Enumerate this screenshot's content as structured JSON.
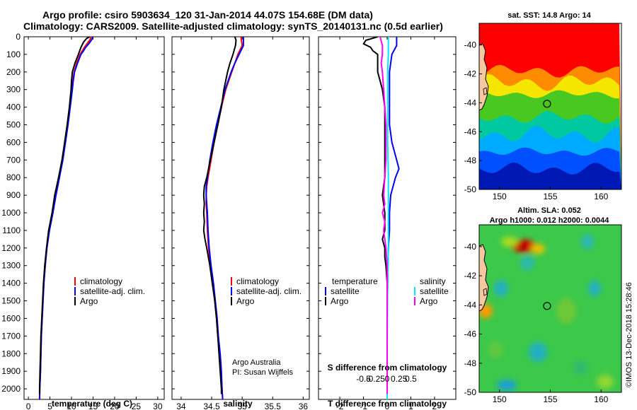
{
  "figure": {
    "title_line1": "Argo profile: csiro 5903634_120 31-Jan-2014 44.07S 154.68E (DM data)",
    "title_line2": "Climatology: CARS2009. Satellite-adjusted climatology: synTS_20140131.nc (0.5d earlier)",
    "credit_line1": "Argo Australia",
    "credit_line2": "PI: Susan Wijffels",
    "imos_stamp": "©IMOS 13-Dec-2018 15:28:46",
    "colors": {
      "climatology": "#ff0000",
      "satellite": "#0000ff",
      "argo": "#000000",
      "s_satellite": "#00e5ff",
      "s_argo": "#ff00ff"
    }
  },
  "chart_data": [
    {
      "type": "line",
      "panel": "temperature",
      "xlabel": "temperature (deg C)",
      "xlim": [
        -1,
        31.5
      ],
      "xticks": [
        0,
        5,
        10,
        15,
        20,
        25,
        30
      ],
      "xtick_labels": [
        "0",
        "5",
        "10",
        "15",
        "20",
        "25",
        "30"
      ],
      "ylim": [
        2060,
        0
      ],
      "yticks": [
        0,
        100,
        200,
        300,
        400,
        500,
        600,
        700,
        800,
        900,
        1000,
        1100,
        1200,
        1300,
        1400,
        1500,
        1600,
        1700,
        1800,
        1900,
        2000
      ],
      "ytick_labels": [
        "0",
        "100",
        "200",
        "300",
        "400",
        "500",
        "600",
        "700",
        "800",
        "900",
        "1000",
        "1100",
        "1200",
        "1300",
        "1400",
        "1500",
        "1600",
        "1700",
        "1800",
        "1900",
        "2000"
      ],
      "legend_labels": [
        "climatology",
        "satellite-adj. clim.",
        "Argo"
      ],
      "series": [
        {
          "name": "climatology",
          "color": "#ff0000",
          "depth": [
            0,
            20,
            40,
            60,
            80,
            100,
            150,
            200,
            250,
            300,
            400,
            500,
            600,
            700,
            800,
            900,
            1000,
            1100,
            1200,
            1300,
            1400,
            1500,
            1600,
            1700,
            1800,
            1900,
            2000,
            2060
          ],
          "values": [
            14.6,
            14.2,
            13.6,
            13.0,
            12.5,
            12.0,
            11.2,
            10.6,
            10.3,
            10.1,
            9.6,
            9.1,
            8.5,
            7.9,
            7.1,
            6.3,
            5.6,
            4.8,
            4.3,
            3.9,
            3.6,
            3.4,
            3.2,
            3.0,
            2.9,
            2.8,
            2.65,
            2.6
          ]
        },
        {
          "name": "satellite-adj. clim.",
          "color": "#0000ff",
          "depth": [
            0,
            20,
            40,
            60,
            80,
            100,
            150,
            200,
            250,
            300,
            400,
            500,
            600,
            700,
            800,
            900,
            1000,
            1100,
            1200,
            1300,
            1400,
            1500,
            1600,
            1700,
            1800,
            1900,
            2000,
            2060
          ],
          "values": [
            15.0,
            14.6,
            14.0,
            13.3,
            12.8,
            12.2,
            11.4,
            10.7,
            10.4,
            10.2,
            9.7,
            9.2,
            8.6,
            8.0,
            7.2,
            6.4,
            5.7,
            4.9,
            4.3,
            3.9,
            3.6,
            3.4,
            3.2,
            3.0,
            2.9,
            2.8,
            2.65,
            2.6
          ]
        },
        {
          "name": "Argo",
          "color": "#000000",
          "depth": [
            0,
            10,
            30,
            60,
            100,
            150,
            200,
            250,
            300,
            400,
            500,
            600,
            700,
            800,
            900,
            1000,
            1100,
            1200,
            1300,
            1400,
            1500,
            1600,
            1700,
            1800,
            1900,
            2000,
            2030
          ],
          "values": [
            14.2,
            13.5,
            12.8,
            12.2,
            11.6,
            10.8,
            10.2,
            10.0,
            9.9,
            9.5,
            9.0,
            8.4,
            7.8,
            7.0,
            6.1,
            5.5,
            4.7,
            4.2,
            3.8,
            3.5,
            3.3,
            3.1,
            2.9,
            2.8,
            2.7,
            2.6,
            2.6
          ]
        }
      ]
    },
    {
      "type": "line",
      "panel": "salinity",
      "xlabel": "salinity",
      "xlim": [
        33.85,
        36.1
      ],
      "xticks": [
        34,
        34.5,
        35,
        35.5,
        36
      ],
      "xtick_labels": [
        "34",
        "34.5",
        "35",
        "35.5",
        "36"
      ],
      "ylim": [
        2060,
        0
      ],
      "legend_labels": [
        "climatology",
        "satellite-adj. clim.",
        "Argo"
      ],
      "series": [
        {
          "name": "climatology",
          "color": "#ff0000",
          "depth": [
            0,
            50,
            100,
            150,
            200,
            300,
            400,
            500,
            600,
            700,
            800,
            850,
            900,
            950,
            1000,
            1100,
            1200,
            1300,
            1400,
            1500,
            1600,
            1700,
            1800,
            1900,
            2000,
            2060
          ],
          "values": [
            34.98,
            35.0,
            34.93,
            34.88,
            34.83,
            34.73,
            34.66,
            34.6,
            34.54,
            34.49,
            34.44,
            34.42,
            34.41,
            34.41,
            34.42,
            34.43,
            34.45,
            34.48,
            34.52,
            34.55,
            34.58,
            34.6,
            34.63,
            34.65,
            34.67,
            34.68
          ]
        },
        {
          "name": "satellite-adj. clim.",
          "color": "#0000ff",
          "depth": [
            0,
            50,
            100,
            150,
            200,
            300,
            400,
            500,
            600,
            700,
            800,
            850,
            900,
            950,
            1000,
            1100,
            1200,
            1300,
            1400,
            1500,
            1600,
            1700,
            1800,
            1900,
            2000,
            2060
          ],
          "values": [
            35.02,
            35.02,
            34.95,
            34.88,
            34.82,
            34.72,
            34.65,
            34.58,
            34.52,
            34.47,
            34.43,
            34.41,
            34.41,
            34.42,
            34.43,
            34.44,
            34.46,
            34.49,
            34.53,
            34.56,
            34.59,
            34.61,
            34.64,
            34.66,
            34.67,
            34.68
          ]
        },
        {
          "name": "Argo",
          "color": "#000000",
          "depth": [
            0,
            20,
            50,
            100,
            150,
            200,
            300,
            400,
            500,
            600,
            700,
            800,
            850,
            900,
            950,
            1000,
            1050,
            1100,
            1150,
            1200,
            1300,
            1400,
            1500,
            1600,
            1700,
            1800,
            1900,
            2000,
            2030
          ],
          "values": [
            34.88,
            34.9,
            34.89,
            34.85,
            34.8,
            34.76,
            34.7,
            34.66,
            34.6,
            34.54,
            34.48,
            34.42,
            34.38,
            34.37,
            34.38,
            34.37,
            34.38,
            34.37,
            34.39,
            34.42,
            34.47,
            34.51,
            34.55,
            34.58,
            34.6,
            34.62,
            34.64,
            34.66,
            34.66
          ]
        }
      ]
    },
    {
      "type": "line",
      "panel": "difference",
      "xlabel": "T difference from climatology",
      "top_xlabel": "S difference from climatology",
      "xlim": [
        -2.9,
        2.9
      ],
      "xticks": [
        -2,
        -1,
        0,
        1,
        2
      ],
      "xtick_labels": [
        "-2",
        "-1",
        "0",
        "1",
        "2"
      ],
      "top_ticks_T": [
        -1,
        -0.5,
        0,
        0.5,
        1
      ],
      "top_tick_labels": [
        "-0.5",
        "-0.25",
        "0",
        "0.25",
        "0.5"
      ],
      "ylim": [
        2060,
        0
      ],
      "legend_left": {
        "heading": "temperature",
        "labels": [
          "satellite",
          "Argo"
        ]
      },
      "legend_right": {
        "heading": "salinity",
        "labels": [
          "satellite",
          "Argo"
        ]
      },
      "series": [
        {
          "name": "T satellite",
          "color": "#0000ff",
          "depth": [
            0,
            50,
            100,
            200,
            300,
            400,
            500,
            600,
            700,
            750,
            800,
            900,
            1000,
            1100,
            1200,
            1400,
            1600,
            1800,
            2000,
            2060
          ],
          "values": [
            0.4,
            0.4,
            0.2,
            0.1,
            0.1,
            0.1,
            0.1,
            0.2,
            0.4,
            0.5,
            0.35,
            0.15,
            0.1,
            0.1,
            0.05,
            0.02,
            0.0,
            0.0,
            0.0,
            0.0
          ]
        },
        {
          "name": "T Argo",
          "color": "#000000",
          "depth": [
            0,
            20,
            40,
            60,
            80,
            100,
            150,
            200,
            250,
            300,
            400,
            500,
            600,
            700,
            800,
            900,
            1000,
            1100,
            1150,
            1200,
            1250,
            1300,
            1400,
            1500,
            1600,
            1700,
            1800,
            1900,
            2000,
            2030
          ],
          "values": [
            -0.4,
            -0.9,
            -1.0,
            -0.7,
            -0.6,
            -0.4,
            -0.4,
            -0.4,
            -0.3,
            -0.2,
            -0.1,
            -0.1,
            -0.1,
            -0.1,
            -0.1,
            -0.2,
            -0.1,
            -0.1,
            -0.2,
            -0.1,
            -0.1,
            -0.05,
            0.0,
            0.0,
            0.0,
            0.0,
            0.0,
            0.0,
            0.0,
            0.0
          ]
        },
        {
          "name": "S satellite",
          "color": "#00e5ff",
          "depth": [
            0,
            100,
            200,
            400,
            600,
            800,
            1000,
            1200,
            1400,
            1600,
            1800,
            2000,
            2060
          ],
          "values": [
            0.05,
            0.05,
            0.02,
            0.02,
            0.02,
            0.05,
            0.05,
            0.05,
            0.02,
            0.01,
            0.0,
            0.0,
            0.0
          ]
        },
        {
          "name": "S Argo",
          "color": "#ff00ff",
          "depth": [
            0,
            50,
            100,
            150,
            200,
            300,
            400,
            500,
            600,
            700,
            800,
            900,
            950,
            1000,
            1050,
            1100,
            1150,
            1200,
            1300,
            1400,
            1500,
            1600,
            1800,
            2000,
            2030
          ],
          "values": [
            -0.3,
            -0.2,
            -0.2,
            -0.25,
            -0.2,
            -0.15,
            -0.1,
            -0.05,
            -0.05,
            -0.05,
            -0.1,
            -0.15,
            -0.1,
            -0.2,
            -0.1,
            -0.15,
            -0.1,
            -0.05,
            0.0,
            0.0,
            0.0,
            0.0,
            0.0,
            0.0,
            0.0
          ]
        }
      ]
    },
    {
      "type": "heatmap",
      "panel": "sst_map",
      "title": "sat. SST: 14.8 Argo: 14",
      "xlim": [
        148,
        162
      ],
      "ylim": [
        -50,
        -38.5
      ],
      "xticks": [
        150,
        155,
        160
      ],
      "xtick_labels": [
        "150",
        "155",
        "160"
      ],
      "yticks": [
        -40,
        -42,
        -44,
        -46,
        -48,
        -50
      ],
      "ytick_labels": [
        "-40",
        "-42",
        "-44",
        "-46",
        "-48",
        "-50"
      ],
      "argo_position": [
        154.68,
        -44.07
      ],
      "color_bands": [
        {
          "lat_range": [
            -38.5,
            -41.8
          ],
          "color": "#ff0000"
        },
        {
          "lat_range": [
            -41.8,
            -42.6
          ],
          "color": "#ff8c00"
        },
        {
          "lat_range": [
            -42.6,
            -43.4
          ],
          "color": "#f5e600"
        },
        {
          "lat_range": [
            -43.4,
            -45.0
          ],
          "color": "#48c820"
        },
        {
          "lat_range": [
            -45.0,
            -46.2
          ],
          "color": "#00c8a0"
        },
        {
          "lat_range": [
            -46.2,
            -47.4
          ],
          "color": "#00aaff"
        },
        {
          "lat_range": [
            -47.4,
            -48.6
          ],
          "color": "#0050ff"
        },
        {
          "lat_range": [
            -48.6,
            -50.0
          ],
          "color": "#0018b4"
        }
      ]
    },
    {
      "type": "heatmap",
      "panel": "sla_map",
      "title_line1": "Altim. SLA: 0.052",
      "title_line2": "Argo h1000: 0.012 h2000: 0.0044",
      "xlim": [
        148,
        162
      ],
      "ylim": [
        -50,
        -38.5
      ],
      "xticks": [
        150,
        155,
        160
      ],
      "xtick_labels": [
        "150",
        "155",
        "160"
      ],
      "yticks": [
        -40,
        -42,
        -44,
        -46,
        -48,
        -50
      ],
      "ytick_labels": [
        "-40",
        "-42",
        "-44",
        "-46",
        "-48",
        "-50"
      ],
      "argo_position": [
        154.68,
        -44.07
      ]
    }
  ]
}
